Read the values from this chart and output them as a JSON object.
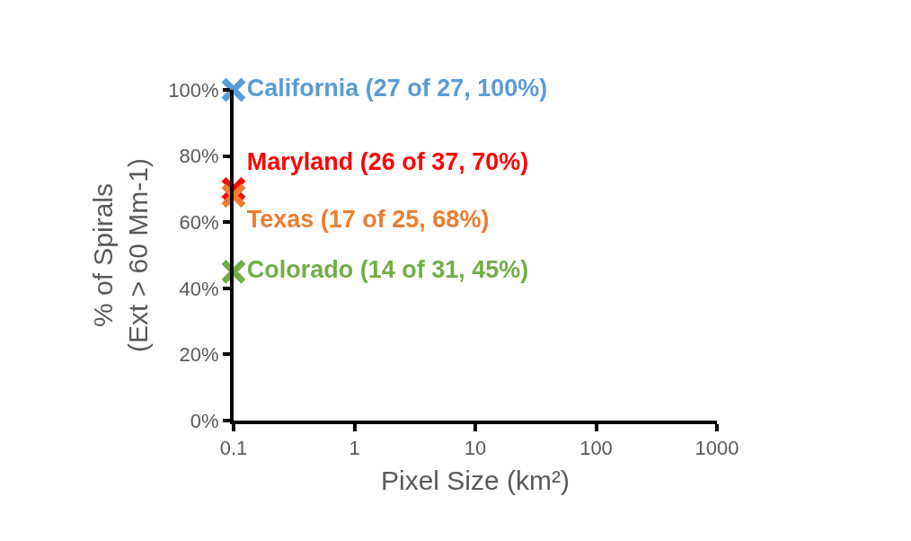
{
  "chart_data": {
    "type": "scatter",
    "xlabel": "Pixel Size (km²)",
    "ylabel": "% of Spirals\n(Ext > 60 Mm-1)",
    "log": "x",
    "marker": "cross",
    "legend": false,
    "x": [
      0.1
    ],
    "xlim": [
      0.1,
      1000
    ],
    "xticks": [
      0.1,
      1,
      10,
      100,
      1000
    ],
    "ylim": [
      0,
      100
    ],
    "yticks": [
      {
        "value": 0,
        "label": "0%"
      },
      {
        "value": 20,
        "label": "20%"
      },
      {
        "value": 40,
        "label": "40%"
      },
      {
        "value": 60,
        "label": "60%"
      },
      {
        "value": 80,
        "label": "80%"
      },
      {
        "value": 100,
        "label": "100%"
      }
    ],
    "series": [
      {
        "name": "California (27 of 27, 100%)",
        "color": "#5b9bd5",
        "values": [
          100
        ]
      },
      {
        "name": "Maryland (26 of 37, 70%)",
        "color": "#ff0000",
        "values": [
          70
        ]
      },
      {
        "name": "Texas (17 of 25, 68%)",
        "color": "#ed7d31",
        "values": [
          68
        ]
      },
      {
        "name": "Colorado (14 of 31, 45%)",
        "color": "#70ad47",
        "values": [
          45
        ]
      }
    ]
  }
}
